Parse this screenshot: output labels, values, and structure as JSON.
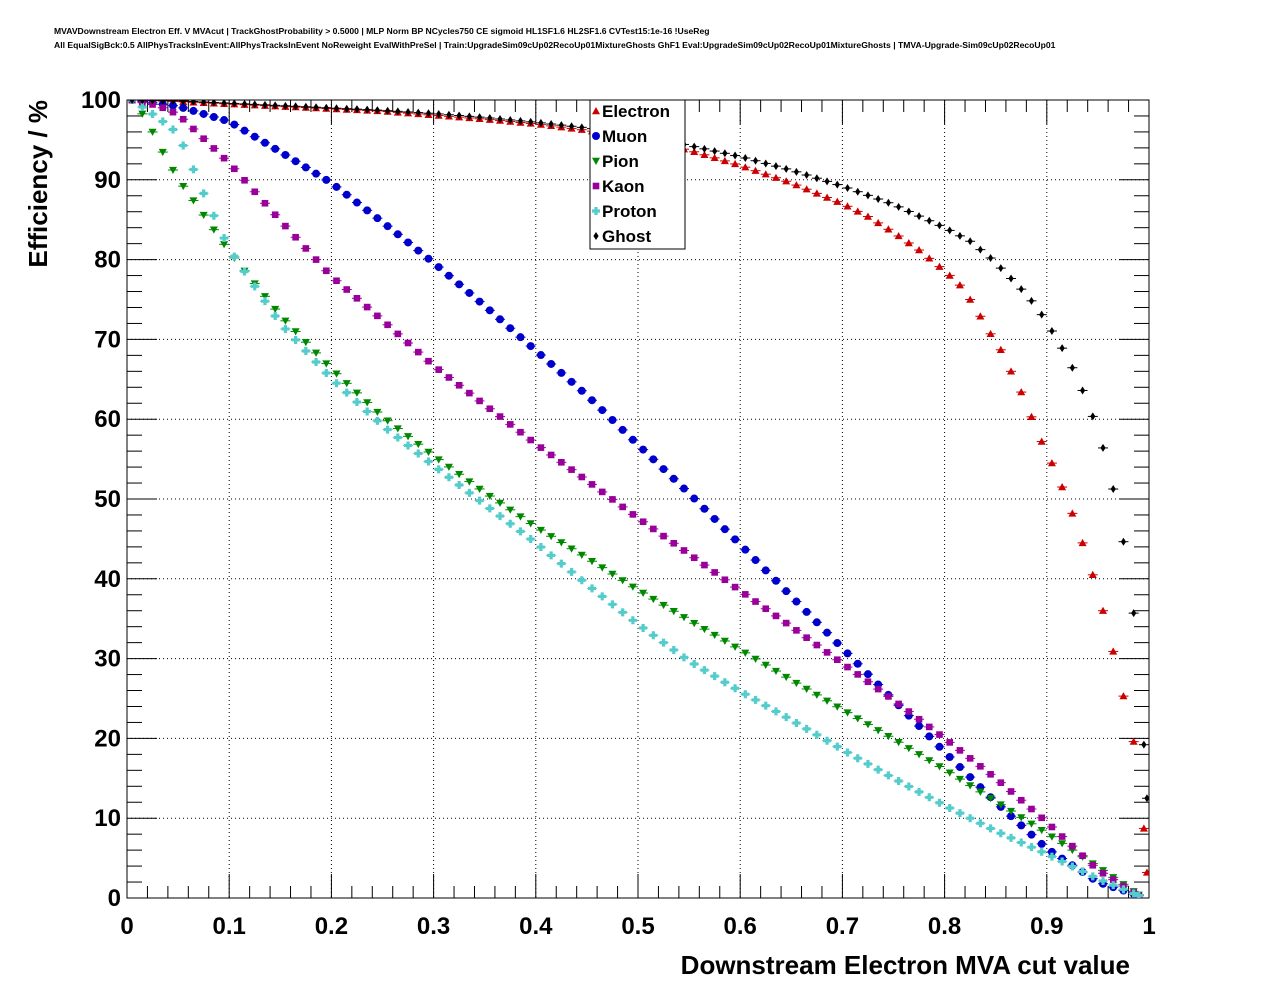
{
  "chart_data": {
    "type": "scatter",
    "title": "MVAVDownstream Electron Eff. V MVAcut | TrackGhostProbability > 0.5000 | MLP Norm BP NCycles750 CE sigmoid HL1SF1.6 HL2SF1.6 CVTest15:1e-16 !UseReg",
    "subtitle": "All EqualSigBck:0.5 AllPhysTracksInEvent:AllPhysTracksInEvent NoReweight EvalWithPreSel | Train:UpgradeSim09cUp02RecoUp01MixtureGhosts GhF1 Eval:UpgradeSim09cUp02RecoUp01MixtureGhosts | TMVA-Upgrade-Sim09cUp02RecoUp01",
    "xlabel": "Downstream Electron MVA cut value",
    "ylabel": "Efficiency / %",
    "xlim": [
      0,
      1
    ],
    "ylim": [
      0,
      100
    ],
    "x_ticks": [
      "0",
      "0.1",
      "0.2",
      "0.3",
      "0.4",
      "0.5",
      "0.6",
      "0.7",
      "0.8",
      "0.9",
      "1"
    ],
    "y_ticks": [
      "0",
      "10",
      "20",
      "30",
      "40",
      "50",
      "60",
      "70",
      "80",
      "90",
      "100"
    ],
    "grid": true,
    "legend_position": "top-center",
    "series": [
      {
        "name": "Electron",
        "color": "#cc0000",
        "marker": "triangle-up",
        "points": [
          [
            0.005,
            100
          ],
          [
            0.05,
            99.8
          ],
          [
            0.1,
            99.5
          ],
          [
            0.15,
            99.2
          ],
          [
            0.2,
            98.9
          ],
          [
            0.25,
            98.6
          ],
          [
            0.3,
            98.1
          ],
          [
            0.35,
            97.6
          ],
          [
            0.4,
            97.0
          ],
          [
            0.45,
            96.2
          ],
          [
            0.5,
            95.1
          ],
          [
            0.55,
            93.7
          ],
          [
            0.6,
            91.8
          ],
          [
            0.65,
            89.6
          ],
          [
            0.7,
            87.0
          ],
          [
            0.725,
            85.4
          ],
          [
            0.75,
            83.4
          ],
          [
            0.775,
            81.2
          ],
          [
            0.8,
            78.6
          ],
          [
            0.815,
            76.8
          ],
          [
            0.825,
            75.0
          ],
          [
            0.835,
            72.9
          ],
          [
            0.845,
            70.7
          ],
          [
            0.855,
            68.7
          ],
          [
            0.865,
            66.0
          ],
          [
            0.875,
            63.4
          ],
          [
            0.885,
            60.3
          ],
          [
            0.895,
            57.2
          ],
          [
            0.905,
            54.5
          ],
          [
            0.915,
            51.5
          ],
          [
            0.925,
            48.2
          ],
          [
            0.935,
            44.5
          ],
          [
            0.945,
            40.5
          ],
          [
            0.955,
            36.0
          ],
          [
            0.965,
            30.9
          ],
          [
            0.975,
            25.3
          ],
          [
            0.985,
            19.6
          ],
          [
            0.993,
            12.4
          ],
          [
            0.998,
            3.2
          ]
        ]
      },
      {
        "name": "Muon",
        "color": "#0000cc",
        "marker": "circle",
        "points": [
          [
            0.005,
            100
          ],
          [
            0.05,
            99.2
          ],
          [
            0.1,
            97.3
          ],
          [
            0.15,
            93.5
          ],
          [
            0.2,
            89.6
          ],
          [
            0.25,
            84.7
          ],
          [
            0.3,
            79.6
          ],
          [
            0.35,
            74.2
          ],
          [
            0.4,
            68.6
          ],
          [
            0.45,
            63.0
          ],
          [
            0.5,
            56.8
          ],
          [
            0.55,
            50.7
          ],
          [
            0.6,
            44.3
          ],
          [
            0.65,
            37.8
          ],
          [
            0.7,
            31.3
          ],
          [
            0.75,
            24.8
          ],
          [
            0.8,
            18.3
          ],
          [
            0.85,
            12.0
          ],
          [
            0.9,
            6.2
          ],
          [
            0.95,
            2.0
          ],
          [
            0.99,
            0.3
          ]
        ]
      },
      {
        "name": "Pion",
        "color": "#008800",
        "marker": "triangle-down",
        "points": [
          [
            0.005,
            100
          ],
          [
            0.02,
            97.4
          ],
          [
            0.03,
            94.6
          ],
          [
            0.05,
            90.1
          ],
          [
            0.07,
            86.5
          ],
          [
            0.1,
            81.0
          ],
          [
            0.15,
            73.0
          ],
          [
            0.2,
            66.3
          ],
          [
            0.25,
            60.3
          ],
          [
            0.3,
            55.4
          ],
          [
            0.35,
            50.8
          ],
          [
            0.4,
            46.5
          ],
          [
            0.45,
            42.6
          ],
          [
            0.5,
            38.6
          ],
          [
            0.55,
            34.8
          ],
          [
            0.6,
            31.1
          ],
          [
            0.65,
            27.3
          ],
          [
            0.7,
            23.6
          ],
          [
            0.75,
            19.9
          ],
          [
            0.8,
            16.1
          ],
          [
            0.85,
            12.1
          ],
          [
            0.9,
            8.1
          ],
          [
            0.95,
            3.9
          ],
          [
            0.99,
            0.4
          ]
        ]
      },
      {
        "name": "Kaon",
        "color": "#990099",
        "marker": "square",
        "points": [
          [
            0.005,
            100
          ],
          [
            0.03,
            99.3
          ],
          [
            0.05,
            98.2
          ],
          [
            0.1,
            92.1
          ],
          [
            0.15,
            84.9
          ],
          [
            0.2,
            77.9
          ],
          [
            0.25,
            72.4
          ],
          [
            0.3,
            66.7
          ],
          [
            0.35,
            61.8
          ],
          [
            0.4,
            56.9
          ],
          [
            0.45,
            52.3
          ],
          [
            0.5,
            47.6
          ],
          [
            0.55,
            43.1
          ],
          [
            0.6,
            38.5
          ],
          [
            0.65,
            34.0
          ],
          [
            0.7,
            29.4
          ],
          [
            0.75,
            24.8
          ],
          [
            0.8,
            20.0
          ],
          [
            0.85,
            15.0
          ],
          [
            0.9,
            9.5
          ],
          [
            0.95,
            3.5
          ],
          [
            0.99,
            0.3
          ]
        ]
      },
      {
        "name": "Proton",
        "color": "#55cccc",
        "marker": "cross",
        "points": [
          [
            0.005,
            100
          ],
          [
            0.03,
            97.8
          ],
          [
            0.05,
            95.8
          ],
          [
            0.075,
            88.3
          ],
          [
            0.1,
            81.3
          ],
          [
            0.15,
            72.0
          ],
          [
            0.2,
            65.1
          ],
          [
            0.25,
            59.2
          ],
          [
            0.3,
            54.2
          ],
          [
            0.35,
            49.3
          ],
          [
            0.4,
            44.5
          ],
          [
            0.45,
            39.3
          ],
          [
            0.5,
            34.3
          ],
          [
            0.55,
            29.7
          ],
          [
            0.6,
            25.9
          ],
          [
            0.65,
            22.3
          ],
          [
            0.7,
            18.6
          ],
          [
            0.75,
            15.0
          ],
          [
            0.8,
            11.6
          ],
          [
            0.85,
            8.4
          ],
          [
            0.9,
            5.5
          ],
          [
            0.95,
            2.4
          ],
          [
            0.99,
            0.3
          ]
        ]
      },
      {
        "name": "Ghost",
        "color": "#000000",
        "marker": "diamond",
        "points": [
          [
            0.005,
            100
          ],
          [
            0.05,
            99.9
          ],
          [
            0.1,
            99.6
          ],
          [
            0.15,
            99.3
          ],
          [
            0.2,
            99.0
          ],
          [
            0.25,
            98.7
          ],
          [
            0.3,
            98.3
          ],
          [
            0.35,
            97.8
          ],
          [
            0.4,
            97.2
          ],
          [
            0.45,
            96.5
          ],
          [
            0.5,
            95.6
          ],
          [
            0.55,
            94.3
          ],
          [
            0.6,
            92.9
          ],
          [
            0.65,
            91.2
          ],
          [
            0.7,
            89.2
          ],
          [
            0.75,
            86.9
          ],
          [
            0.8,
            84.0
          ],
          [
            0.825,
            82.3
          ],
          [
            0.845,
            80.2
          ],
          [
            0.86,
            78.3
          ],
          [
            0.875,
            76.3
          ],
          [
            0.89,
            74.1
          ],
          [
            0.9,
            72.1
          ],
          [
            0.91,
            70.0
          ],
          [
            0.92,
            67.8
          ],
          [
            0.93,
            65.1
          ],
          [
            0.94,
            62.1
          ],
          [
            0.95,
            58.6
          ],
          [
            0.96,
            54.2
          ],
          [
            0.97,
            48.3
          ],
          [
            0.98,
            41.0
          ],
          [
            0.99,
            30.4
          ],
          [
            0.998,
            12.5
          ]
        ]
      }
    ]
  }
}
